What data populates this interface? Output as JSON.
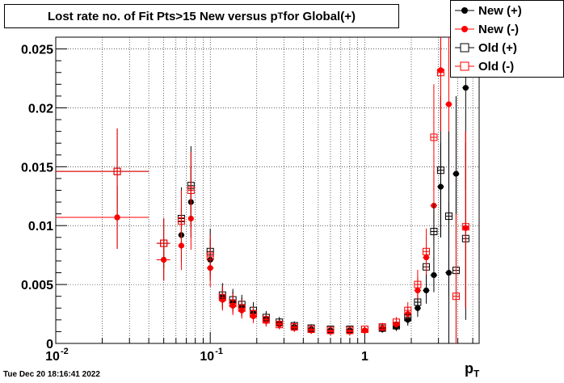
{
  "title_text": "Lost rate no. of Fit Pts>15 New versus p",
  "title_sub": "T",
  "title_suffix": " for Global(+)",
  "timestamp": "Tue Dec 20 18:16:41 2022",
  "chart_data": {
    "type": "scatter",
    "title": "Lost rate no. of Fit Pts>15 New versus pT for Global(+)",
    "xlabel": "p",
    "xlabel_sub": "T",
    "ylabel": "",
    "xscale": "log",
    "xlim": [
      0.01,
      5.5
    ],
    "ylim": [
      0,
      0.026
    ],
    "grid": true,
    "legend_position": "top-right",
    "x_tick_labels": [
      "10",
      "10",
      "1"
    ],
    "x_tick_exps": [
      "-2",
      "-1",
      ""
    ],
    "y_tick_labels": [
      "0",
      "0.005",
      "0.01",
      "0.015",
      "0.02",
      "0.025"
    ],
    "y_tick_values": [
      0,
      0.005,
      0.01,
      0.015,
      0.02,
      0.025
    ],
    "series": [
      {
        "name": "New (+)",
        "marker": "filled-circle",
        "color": "#000000",
        "points": [
          {
            "x": 0.025,
            "y": 0.0107,
            "xlo": 0.01,
            "xhi": 0.04
          },
          {
            "x": 0.05,
            "y": 0.0071,
            "xlo": 0.045,
            "xhi": 0.055
          },
          {
            "x": 0.065,
            "y": 0.0092,
            "xlo": 0.062,
            "xhi": 0.068
          },
          {
            "x": 0.075,
            "y": 0.012,
            "xlo": 0.072,
            "xhi": 0.078
          },
          {
            "x": 0.1,
            "y": 0.0071,
            "xlo": 0.095,
            "xhi": 0.105
          },
          {
            "x": 0.12,
            "y": 0.0039,
            "xlo": 0.114,
            "xhi": 0.126
          },
          {
            "x": 0.14,
            "y": 0.0035
          },
          {
            "x": 0.16,
            "y": 0.0031
          },
          {
            "x": 0.19,
            "y": 0.0026
          },
          {
            "x": 0.23,
            "y": 0.0021
          },
          {
            "x": 0.28,
            "y": 0.0017
          },
          {
            "x": 0.35,
            "y": 0.0014
          },
          {
            "x": 0.45,
            "y": 0.0012
          },
          {
            "x": 0.6,
            "y": 0.0011
          },
          {
            "x": 0.8,
            "y": 0.0011
          },
          {
            "x": 1.0,
            "y": 0.0011
          },
          {
            "x": 1.3,
            "y": 0.0012
          },
          {
            "x": 1.6,
            "y": 0.0014
          },
          {
            "x": 1.9,
            "y": 0.002
          },
          {
            "x": 2.2,
            "y": 0.003
          },
          {
            "x": 2.5,
            "y": 0.0045
          },
          {
            "x": 2.8,
            "y": 0.0058
          },
          {
            "x": 3.1,
            "y": 0.0133,
            "ylo": 0.009,
            "yhi": 0.017
          },
          {
            "x": 3.5,
            "y": 0.006,
            "ylo": 0.0,
            "yhi": 0.012
          },
          {
            "x": 3.9,
            "y": 0.0144,
            "ylo": 0.008,
            "yhi": 0.021
          },
          {
            "x": 4.5,
            "y": 0.0217,
            "ylo": 0.013,
            "yhi": 0.026
          }
        ]
      },
      {
        "name": "New (-)",
        "marker": "filled-circle",
        "color": "#ff0000",
        "points": [
          {
            "x": 0.025,
            "y": 0.0107,
            "xlo": 0.01,
            "xhi": 0.04
          },
          {
            "x": 0.05,
            "y": 0.0071,
            "xlo": 0.045,
            "xhi": 0.055
          },
          {
            "x": 0.065,
            "y": 0.0083,
            "xlo": 0.062,
            "xhi": 0.068
          },
          {
            "x": 0.075,
            "y": 0.0106,
            "xlo": 0.072,
            "xhi": 0.078
          },
          {
            "x": 0.1,
            "y": 0.0064,
            "xlo": 0.095,
            "xhi": 0.105
          },
          {
            "x": 0.12,
            "y": 0.0037,
            "xlo": 0.114,
            "xhi": 0.126
          },
          {
            "x": 0.14,
            "y": 0.0032
          },
          {
            "x": 0.16,
            "y": 0.0028
          },
          {
            "x": 0.19,
            "y": 0.0023
          },
          {
            "x": 0.23,
            "y": 0.0019
          },
          {
            "x": 0.28,
            "y": 0.0016
          },
          {
            "x": 0.35,
            "y": 0.0013
          },
          {
            "x": 0.45,
            "y": 0.0011
          },
          {
            "x": 0.6,
            "y": 0.001
          },
          {
            "x": 0.8,
            "y": 0.001
          },
          {
            "x": 1.0,
            "y": 0.0011
          },
          {
            "x": 1.3,
            "y": 0.0013
          },
          {
            "x": 1.6,
            "y": 0.0016
          },
          {
            "x": 1.9,
            "y": 0.0025
          },
          {
            "x": 2.2,
            "y": 0.0045
          },
          {
            "x": 2.5,
            "y": 0.0073
          },
          {
            "x": 2.8,
            "y": 0.0117
          },
          {
            "x": 3.1,
            "y": 0.0232,
            "ylo": 0.018,
            "yhi": 0.026
          },
          {
            "x": 3.5,
            "y": 0.0203,
            "ylo": 0.013,
            "yhi": 0.026
          },
          {
            "x": 4.5,
            "y": 0.0098,
            "ylo": 0.003,
            "yhi": 0.018
          }
        ]
      },
      {
        "name": "Old (+)",
        "marker": "open-square",
        "color": "#000000",
        "points": [
          {
            "x": 0.025,
            "y": 0.0146,
            "xlo": 0.01,
            "xhi": 0.04
          },
          {
            "x": 0.05,
            "y": 0.0085,
            "xlo": 0.045,
            "xhi": 0.055
          },
          {
            "x": 0.065,
            "y": 0.0106,
            "xlo": 0.062,
            "xhi": 0.068
          },
          {
            "x": 0.075,
            "y": 0.0134,
            "xlo": 0.072,
            "xhi": 0.078
          },
          {
            "x": 0.1,
            "y": 0.0078,
            "xlo": 0.095,
            "xhi": 0.105
          },
          {
            "x": 0.12,
            "y": 0.0041,
            "xlo": 0.114,
            "xhi": 0.126
          },
          {
            "x": 0.14,
            "y": 0.0037
          },
          {
            "x": 0.16,
            "y": 0.0033
          },
          {
            "x": 0.19,
            "y": 0.0028
          },
          {
            "x": 0.23,
            "y": 0.0022
          },
          {
            "x": 0.28,
            "y": 0.0018
          },
          {
            "x": 0.35,
            "y": 0.0015
          },
          {
            "x": 0.45,
            "y": 0.0013
          },
          {
            "x": 0.6,
            "y": 0.0012
          },
          {
            "x": 0.8,
            "y": 0.0012
          },
          {
            "x": 1.0,
            "y": 0.0012
          },
          {
            "x": 1.3,
            "y": 0.0013
          },
          {
            "x": 1.6,
            "y": 0.0015
          },
          {
            "x": 1.9,
            "y": 0.0022
          },
          {
            "x": 2.2,
            "y": 0.0035
          },
          {
            "x": 2.5,
            "y": 0.0065
          },
          {
            "x": 2.8,
            "y": 0.0095
          },
          {
            "x": 3.1,
            "y": 0.0147,
            "ylo": 0.009,
            "yhi": 0.021
          },
          {
            "x": 3.5,
            "y": 0.0108,
            "ylo": 0.004,
            "yhi": 0.018
          },
          {
            "x": 3.9,
            "y": 0.0062,
            "ylo": 0.0,
            "yhi": 0.014
          },
          {
            "x": 4.5,
            "y": 0.0089,
            "ylo": 0.002,
            "yhi": 0.017
          }
        ]
      },
      {
        "name": "Old (-)",
        "marker": "open-square",
        "color": "#ff0000",
        "points": [
          {
            "x": 0.025,
            "y": 0.0146,
            "xlo": 0.01,
            "xhi": 0.04
          },
          {
            "x": 0.05,
            "y": 0.0085,
            "xlo": 0.045,
            "xhi": 0.055
          },
          {
            "x": 0.065,
            "y": 0.0104,
            "xlo": 0.062,
            "xhi": 0.068
          },
          {
            "x": 0.075,
            "y": 0.013,
            "xlo": 0.072,
            "xhi": 0.078
          },
          {
            "x": 0.1,
            "y": 0.0074,
            "xlo": 0.095,
            "xhi": 0.105
          },
          {
            "x": 0.12,
            "y": 0.0039,
            "xlo": 0.114,
            "xhi": 0.126
          },
          {
            "x": 0.14,
            "y": 0.0034
          },
          {
            "x": 0.16,
            "y": 0.003
          },
          {
            "x": 0.19,
            "y": 0.0025
          },
          {
            "x": 0.23,
            "y": 0.002
          },
          {
            "x": 0.28,
            "y": 0.0016
          },
          {
            "x": 0.35,
            "y": 0.0014
          },
          {
            "x": 0.45,
            "y": 0.0012
          },
          {
            "x": 0.6,
            "y": 0.0011
          },
          {
            "x": 0.8,
            "y": 0.0011
          },
          {
            "x": 1.0,
            "y": 0.0012
          },
          {
            "x": 1.3,
            "y": 0.0014
          },
          {
            "x": 1.6,
            "y": 0.0018
          },
          {
            "x": 1.9,
            "y": 0.0028
          },
          {
            "x": 2.2,
            "y": 0.005
          },
          {
            "x": 2.5,
            "y": 0.0078
          },
          {
            "x": 2.8,
            "y": 0.0175,
            "ylo": 0.013,
            "yhi": 0.022
          },
          {
            "x": 3.1,
            "y": 0.023,
            "ylo": 0.018,
            "yhi": 0.026
          },
          {
            "x": 3.9,
            "y": 0.004,
            "ylo": 0.0,
            "yhi": 0.011
          },
          {
            "x": 4.5,
            "y": 0.0099,
            "ylo": 0.003,
            "yhi": 0.018
          }
        ]
      }
    ]
  }
}
